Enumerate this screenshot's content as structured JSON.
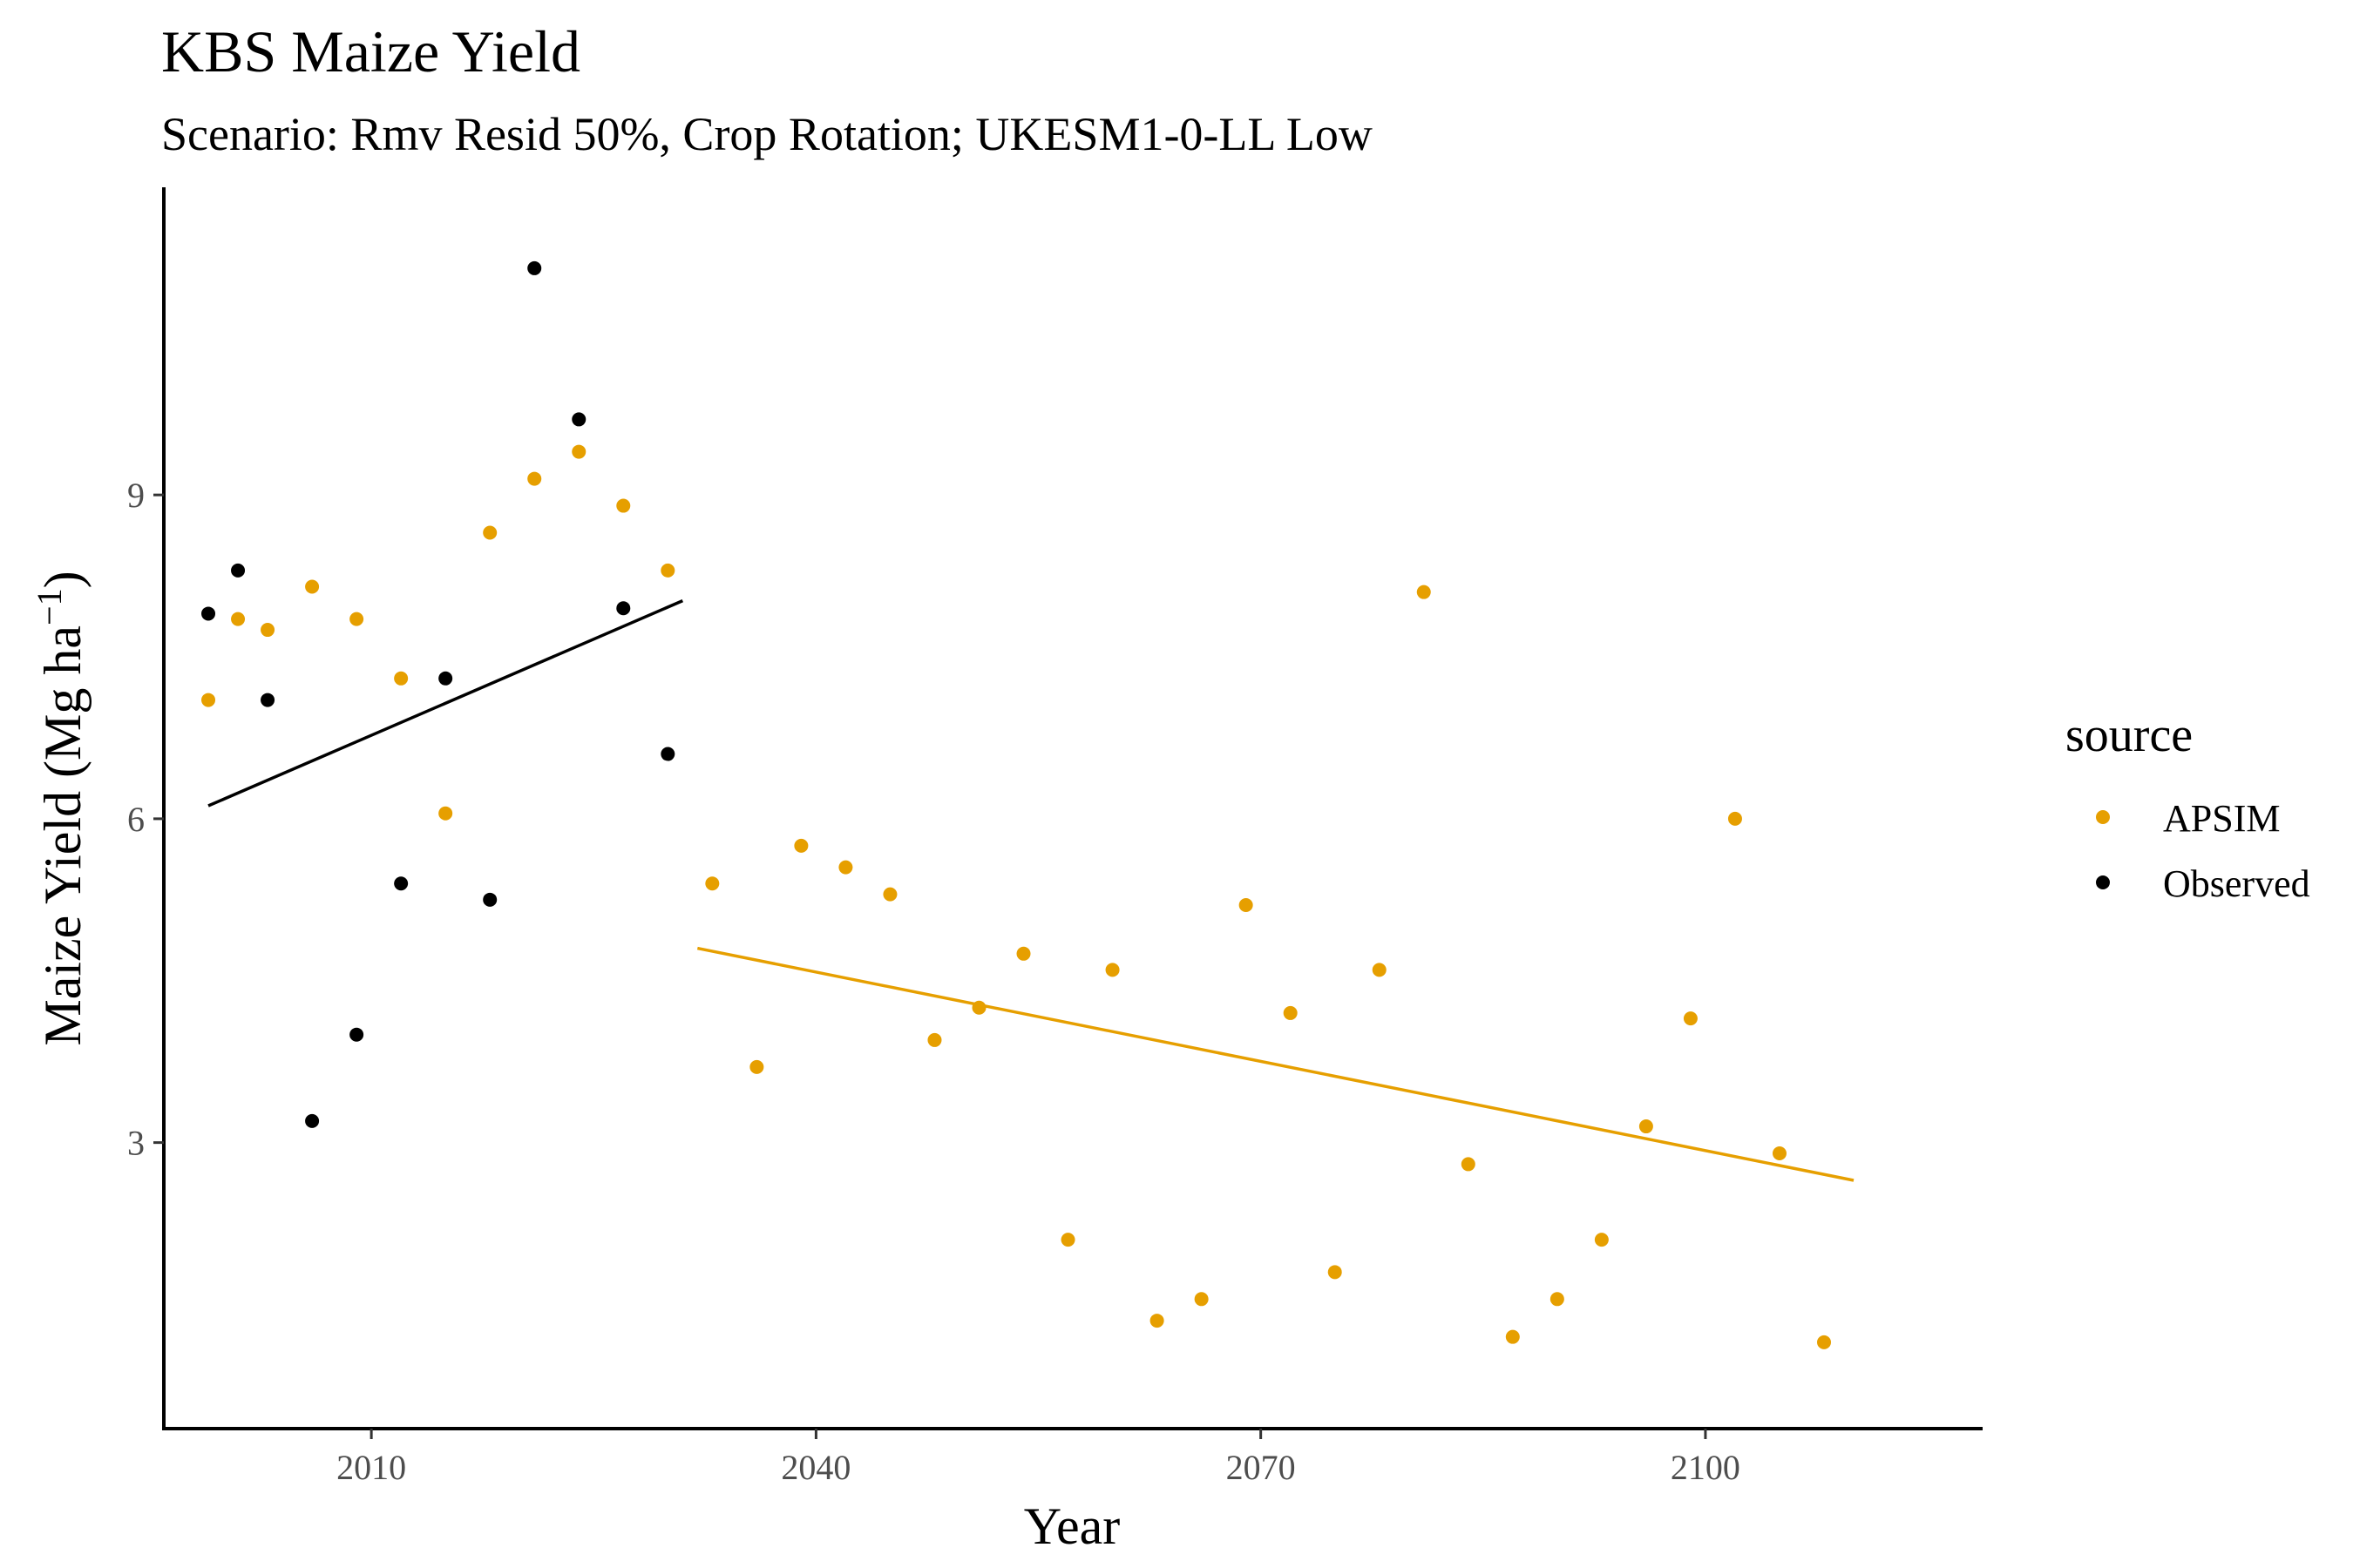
{
  "chart_data": {
    "type": "scatter",
    "title": "KBS Maize Yield",
    "subtitle": "Scenario: Rmv Resid 50%, Crop Rotation; UKESM1-0-LL Low",
    "xlabel": "Year",
    "ylabel": "Maize Yield (Mg ha",
    "ylabel_sup": "−1",
    "ylabel_close": ")",
    "xlim": [
      1996,
      2118.7
    ],
    "ylim": [
      0.35,
      11.85
    ],
    "xticks": [
      2010,
      2040,
      2070,
      2100
    ],
    "yticks": [
      3,
      6,
      9
    ],
    "grid": false,
    "legend": {
      "title": "source",
      "position": "right"
    },
    "colors": {
      "APSIM": "#E69F00",
      "Observed": "#000000"
    },
    "series": [
      {
        "name": "APSIM",
        "x": [
          1999,
          2001,
          2003,
          2006,
          2009,
          2012,
          2015,
          2018,
          2021,
          2024,
          2027,
          2030,
          2033,
          2036,
          2039,
          2042,
          2045,
          2048,
          2051,
          2054,
          2057,
          2060,
          2063,
          2066,
          2069,
          2072,
          2075,
          2078,
          2081,
          2084,
          2087,
          2090,
          2093,
          2096,
          2099,
          2102,
          2105,
          2108
        ],
        "y": [
          7.1,
          7.85,
          7.75,
          8.15,
          7.85,
          7.3,
          6.05,
          8.65,
          9.15,
          9.4,
          8.9,
          8.3,
          5.4,
          3.7,
          5.75,
          5.55,
          5.3,
          3.95,
          4.25,
          4.75,
          2.1,
          4.6,
          1.35,
          1.55,
          5.2,
          4.2,
          1.8,
          4.6,
          8.1,
          2.8,
          1.2,
          1.55,
          2.1,
          3.15,
          4.15,
          6.0,
          2.9,
          1.15
        ]
      },
      {
        "name": "Observed",
        "x": [
          1999,
          2001,
          2003,
          2006,
          2009,
          2012,
          2015,
          2018,
          2021,
          2024,
          2027,
          2030
        ],
        "y": [
          7.9,
          8.3,
          7.1,
          3.2,
          4.0,
          5.4,
          7.3,
          5.25,
          11.1,
          9.7,
          7.95,
          6.6
        ]
      }
    ],
    "trendlines": [
      {
        "series": "Observed",
        "x": [
          1999,
          2031
        ],
        "y": [
          6.12,
          8.02
        ]
      },
      {
        "series": "APSIM",
        "x": [
          2032,
          2110
        ],
        "y": [
          4.8,
          2.65
        ]
      }
    ]
  }
}
